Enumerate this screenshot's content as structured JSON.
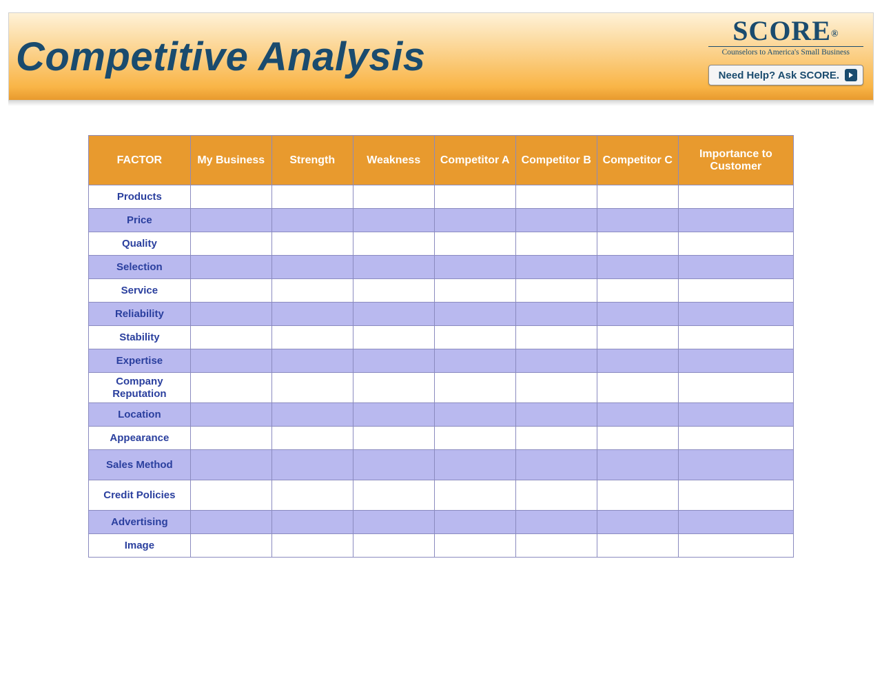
{
  "banner": {
    "title": "Competitive Analysis",
    "title_color": "#1a4b6e",
    "gradient_top": "#fef2d8",
    "gradient_bottom": "#f9b547",
    "logo_text": "SCORE",
    "logo_reg": "®",
    "logo_tagline": "Counselors to America's Small Business",
    "help_label": "Need Help? Ask SCORE."
  },
  "table": {
    "header_bg": "#e89a2e",
    "header_fg": "#ffffff",
    "border_color": "#8a8abf",
    "row_odd_bg": "#ffffff",
    "row_even_bg": "#b9b9ef",
    "factor_text_color": "#2a3f9e",
    "columns": [
      "FACTOR",
      "My Business",
      "Strength",
      "Weakness",
      "Competitor A",
      "Competitor B",
      "Competitor C",
      "Importance to Customer"
    ],
    "factors": [
      "Products",
      "Price",
      "Quality",
      "Selection",
      "Service",
      "Reliability",
      "Stability",
      "Expertise",
      "Company Reputation",
      "Location",
      "Appearance",
      "Sales Method",
      "Credit Policies",
      "Advertising",
      "Image"
    ]
  }
}
